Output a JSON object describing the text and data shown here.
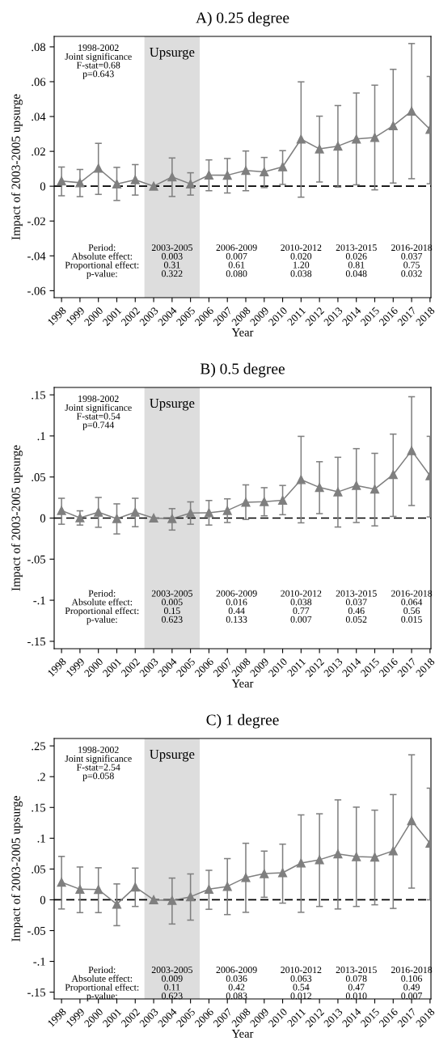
{
  "chart_data": [
    {
      "type": "line",
      "title": "A) 0.25 degree",
      "xlabel": "Year",
      "ylabel": "Impact of 2003-2005 upsurge",
      "x": [
        1998,
        1999,
        2000,
        2001,
        2002,
        2003,
        2004,
        2005,
        2006,
        2007,
        2008,
        2009,
        2010,
        2011,
        2012,
        2013,
        2014,
        2015,
        2016,
        2017,
        2018
      ],
      "series": [
        {
          "color": "#7f7f7f",
          "values": [
            0.003,
            0.002,
            0.0103,
            0.0013,
            0.0037,
            0,
            0.0053,
            0.0013,
            0.0064,
            0.0063,
            0.009,
            0.0082,
            0.0111,
            0.027,
            0.0214,
            0.023,
            0.0271,
            0.028,
            0.0347,
            0.0431,
            0.0326
          ],
          "errors": [
            [
              -0.0055,
              0.011
            ],
            [
              -0.006,
              0.0096
            ],
            [
              -0.0047,
              0.0246
            ],
            [
              -0.0082,
              0.0108
            ],
            [
              -0.0051,
              0.0124
            ],
            null,
            [
              -0.0059,
              0.0162
            ],
            [
              -0.0051,
              0.0077
            ],
            [
              -0.0026,
              0.0151
            ],
            [
              -0.0039,
              0.0159
            ],
            [
              -0.0026,
              0.0202
            ],
            [
              -0.0008,
              0.0165
            ],
            [
              0.001,
              0.0204
            ],
            [
              -0.0063,
              0.0599
            ],
            [
              0.0024,
              0.0402
            ],
            [
              -0.0005,
              0.0463
            ],
            [
              0.0008,
              0.0535
            ],
            [
              -0.0021,
              0.058
            ],
            [
              0.0018,
              0.0671
            ],
            [
              0.0043,
              0.0819
            ],
            [
              0.0014,
              0.063
            ]
          ]
        }
      ],
      "xlim": [
        1997.6,
        2018.05
      ],
      "xticks": [
        1998,
        1999,
        2000,
        2001,
        2002,
        2003,
        2004,
        2005,
        2006,
        2007,
        2008,
        2009,
        2010,
        2011,
        2012,
        2013,
        2014,
        2015,
        2016,
        2017,
        2018
      ],
      "ylim": [
        -0.064,
        0.086
      ],
      "yticks": [
        {
          "value": -0.06,
          "label": "-.06"
        },
        {
          "value": -0.04,
          "label": "-.04"
        },
        {
          "value": -0.02,
          "label": "-.02"
        },
        0,
        {
          "value": 0.02,
          "label": ".02"
        },
        {
          "value": 0.04,
          "label": ".04"
        },
        {
          "value": 0.06,
          "label": ".06"
        },
        {
          "value": 0.08,
          "label": ".08"
        }
      ],
      "ref_lines": [
        {
          "axis": "y",
          "value": 0,
          "color": "#000000",
          "line_style": "dashed"
        }
      ],
      "bands": [
        {
          "axis": "x",
          "from": 2002.5,
          "to": 2005.5,
          "label": "Upsurge",
          "color": "#dddddd"
        }
      ],
      "marker": "triangle",
      "grid": false,
      "legend": false,
      "annotations": [
        "1998-2002\nJoint significance\nF-stat=0.68\np=0.643",
        "Period:\nAbsolute effect:\nProportional effect:\np-value:",
        "2003-2005\n0.003\n0.31\n0.322",
        "2006-2009\n0.007\n0.61\n0.080",
        "2010-2012\n0.020\n1.20\n0.038",
        "2013-2015\n0.026\n0.81\n0.048",
        "2016-2018\n0.037\n0.75\n0.032"
      ]
    },
    {
      "type": "line",
      "title": "B) 0.5 degree",
      "xlabel": "Year",
      "ylabel": "Impact of 2003-2005 upsurge",
      "x": [
        1998,
        1999,
        2000,
        2001,
        2002,
        2003,
        2004,
        2005,
        2006,
        2007,
        2008,
        2009,
        2010,
        2011,
        2012,
        2013,
        2014,
        2015,
        2016,
        2017,
        2018
      ],
      "series": [
        {
          "color": "#7f7f7f",
          "values": [
            0.0092,
            0.0003,
            0.0071,
            -0.0007,
            0.0071,
            0,
            -0.0007,
            0.0061,
            0.0064,
            0.0092,
            0.0193,
            0.02,
            0.0217,
            0.0468,
            0.0373,
            0.0319,
            0.0397,
            0.0353,
            0.053,
            0.0821,
            0.0516
          ],
          "errors": [
            [
              -0.0075,
              0.0241
            ],
            [
              -0.0085,
              0.0088
            ],
            [
              -0.0112,
              0.0251
            ],
            [
              -0.0193,
              0.0173
            ],
            [
              -0.0105,
              0.0241
            ],
            null,
            [
              -0.0146,
              0.0115
            ],
            [
              -0.0075,
              0.0197
            ],
            [
              -0.0085,
              0.0214
            ],
            [
              -0.0054,
              0.0234
            ],
            [
              -0.0017,
              0.0404
            ],
            [
              0.0027,
              0.037
            ],
            [
              0.0041,
              0.0397
            ],
            [
              -0.0058,
              0.0995
            ],
            [
              0.0054,
              0.0686
            ],
            [
              -0.0109,
              0.074
            ],
            [
              -0.0054,
              0.0845
            ],
            [
              -0.0095,
              0.0788
            ],
            [
              0.002,
              0.1022
            ],
            [
              0.0153,
              0.1477
            ],
            [
              0.0014,
              0.0995
            ]
          ]
        }
      ],
      "xlim": [
        1997.6,
        2018.05
      ],
      "xticks": [
        1998,
        1999,
        2000,
        2001,
        2002,
        2003,
        2004,
        2005,
        2006,
        2007,
        2008,
        2009,
        2010,
        2011,
        2012,
        2013,
        2014,
        2015,
        2016,
        2017,
        2018
      ],
      "ylim": [
        -0.159,
        0.159
      ],
      "yticks": [
        {
          "value": -0.15,
          "label": "-.15"
        },
        {
          "value": -0.1,
          "label": "-.1"
        },
        {
          "value": -0.05,
          "label": "-.05"
        },
        0,
        {
          "value": 0.05,
          "label": ".05"
        },
        {
          "value": 0.1,
          "label": ".1"
        },
        {
          "value": 0.15,
          "label": ".15"
        }
      ],
      "ref_lines": [
        {
          "axis": "y",
          "value": 0,
          "color": "#000000",
          "line_style": "dashed"
        }
      ],
      "bands": [
        {
          "axis": "x",
          "from": 2002.5,
          "to": 2005.5,
          "label": "Upsurge",
          "color": "#dddddd"
        }
      ],
      "marker": "triangle",
      "grid": false,
      "legend": false,
      "annotations": [
        "1998-2002\nJoint significance\nF-stat=0.54\np=0.744",
        "Period:\nAbsolute effect:\nProportional effect:\np-value:",
        "2003-2005\n0.005\n0.15\n0.623",
        "2006-2009\n0.016\n0.44\n0.133",
        "2010-2012\n0.038\n0.77\n0.007",
        "2013-2015\n0.037\n0.46\n0.052",
        "2016-2018\n0.064\n0.56\n0.015"
      ]
    },
    {
      "type": "line",
      "title": "C) 1 degree",
      "xlabel": "Year",
      "ylabel": "Impact of 2003-2005 upsurge",
      "x": [
        1998,
        1999,
        2000,
        2001,
        2002,
        2003,
        2004,
        2005,
        2006,
        2007,
        2008,
        2009,
        2010,
        2011,
        2012,
        2013,
        2014,
        2015,
        2016,
        2017,
        2018
      ],
      "series": [
        {
          "color": "#7f7f7f",
          "values": [
            0.0285,
            0.0172,
            0.0167,
            -0.0072,
            0.0208,
            0,
            -0.0009,
            0.005,
            0.0172,
            0.0217,
            0.0362,
            0.0425,
            0.0439,
            0.0597,
            0.0651,
            0.0746,
            0.0701,
            0.0692,
            0.0796,
            0.1284,
            0.0918
          ],
          "errors": [
            [
              -0.0149,
              0.0705
            ],
            [
              -0.0208,
              0.0533
            ],
            [
              -0.0208,
              0.052
            ],
            [
              -0.042,
              0.0258
            ],
            [
              -0.0108,
              0.0515
            ],
            null,
            [
              -0.0393,
              0.0353
            ],
            [
              -0.033,
              0.042
            ],
            [
              -0.0154,
              0.0479
            ],
            [
              -0.024,
              0.0669
            ],
            [
              -0.0203,
              0.0918
            ],
            [
              0.0041,
              0.0791
            ],
            [
              -0.0054,
              0.0904
            ],
            [
              -0.0203,
              0.1379
            ],
            [
              -0.0108,
              0.1397
            ],
            [
              -0.0149,
              0.1623
            ],
            [
              -0.0108,
              0.1505
            ],
            [
              -0.0081,
              0.1456
            ],
            [
              -0.014,
              0.1709
            ],
            [
              0.019,
              0.2355
            ],
            [
              0,
              0.1813
            ]
          ]
        }
      ],
      "xlim": [
        1997.6,
        2018.05
      ],
      "xticks": [
        1998,
        1999,
        2000,
        2001,
        2002,
        2003,
        2004,
        2005,
        2006,
        2007,
        2008,
        2009,
        2010,
        2011,
        2012,
        2013,
        2014,
        2015,
        2016,
        2017,
        2018
      ],
      "ylim": [
        -0.161,
        0.262
      ],
      "yticks": [
        {
          "value": -0.15,
          "label": "-.15"
        },
        {
          "value": -0.1,
          "label": "-.1"
        },
        {
          "value": -0.05,
          "label": "-.05"
        },
        0,
        {
          "value": 0.05,
          "label": ".05"
        },
        {
          "value": 0.1,
          "label": ".1"
        },
        {
          "value": 0.15,
          "label": ".15"
        },
        {
          "value": 0.2,
          "label": ".2"
        },
        {
          "value": 0.25,
          "label": ".25"
        }
      ],
      "ref_lines": [
        {
          "axis": "y",
          "value": 0,
          "color": "#000000",
          "line_style": "dashed"
        }
      ],
      "bands": [
        {
          "axis": "x",
          "from": 2002.5,
          "to": 2005.5,
          "label": "Upsurge",
          "color": "#dddddd"
        }
      ],
      "marker": "triangle",
      "grid": false,
      "legend": false,
      "annotations": [
        "1998-2002\nJoint significance\nF-stat=2.54\np=0.058",
        "Period:\nAbsolute effect:\nProportional effect:\np-value:",
        "2003-2005\n0.009\n0.11\n0.623",
        "2006-2009\n0.036\n0.42\n0.083",
        "2010-2012\n0.063\n0.54\n0.012",
        "2013-2015\n0.078\n0.47\n0.010",
        "2016-2018\n0.106\n0.49\n0.007"
      ]
    }
  ]
}
